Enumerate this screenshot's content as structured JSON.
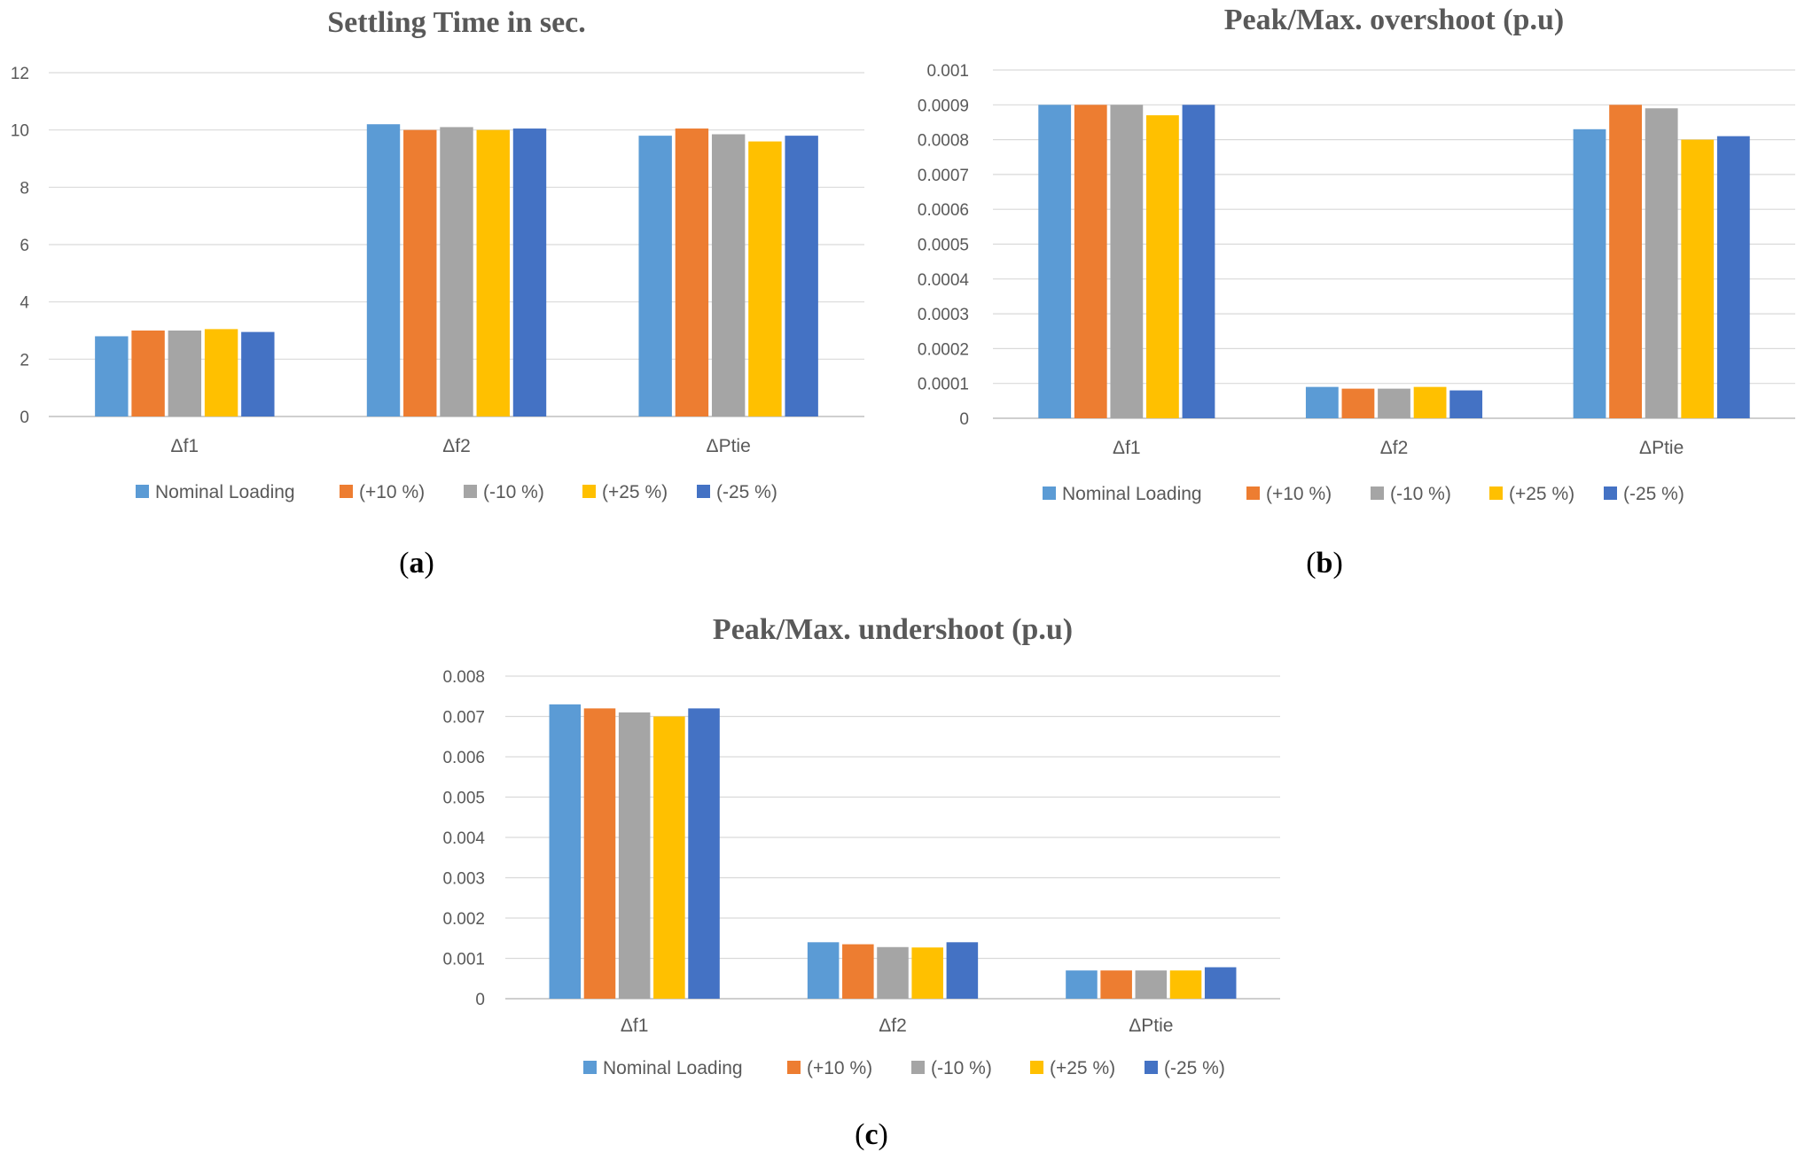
{
  "colors": {
    "series": [
      "#5B9BD5",
      "#ED7D31",
      "#A5A5A5",
      "#FFC000",
      "#4472C4"
    ],
    "grid": "#d9d9d9",
    "axis": "#bfbfbf",
    "text": "#595959"
  },
  "captions": [
    {
      "open": "(",
      "letter": "a",
      "close": ")"
    },
    {
      "open": "(",
      "letter": "b",
      "close": ")"
    },
    {
      "open": "(",
      "letter": "c",
      "close": ")"
    }
  ],
  "chart_data": [
    {
      "type": "bar",
      "title": "Settling Time in sec.",
      "categories": [
        "Δf1",
        "Δf2",
        "ΔPtie"
      ],
      "ylim": [
        0,
        12
      ],
      "yticks": [
        "0",
        "2",
        "4",
        "6",
        "8",
        "10",
        "12"
      ],
      "ytick_values": [
        0,
        2,
        4,
        6,
        8,
        10,
        12
      ],
      "grid": true,
      "legend": "bottom",
      "series": [
        {
          "name": "Nominal Loading",
          "values": [
            2.8,
            10.2,
            9.8
          ]
        },
        {
          "name": "(+10 %)",
          "values": [
            3.0,
            10.0,
            10.05
          ]
        },
        {
          "name": "(-10 %)",
          "values": [
            3.0,
            10.1,
            9.85
          ]
        },
        {
          "name": "(+25 %)",
          "values": [
            3.05,
            10.0,
            9.6
          ]
        },
        {
          "name": "(-25 %)",
          "values": [
            2.95,
            10.05,
            9.8
          ]
        }
      ]
    },
    {
      "type": "bar",
      "title": "Peak/Max. overshoot (p.u)",
      "categories": [
        "Δf1",
        "Δf2",
        "ΔPtie"
      ],
      "ylim": [
        0,
        0.001
      ],
      "yticks": [
        "0",
        "0.0001",
        "0.0002",
        "0.0003",
        "0.0004",
        "0.0005",
        "0.0006",
        "0.0007",
        "0.0008",
        "0.0009",
        "0.001"
      ],
      "ytick_values": [
        0,
        0.0001,
        0.0002,
        0.0003,
        0.0004,
        0.0005,
        0.0006,
        0.0007,
        0.0008,
        0.0009,
        0.001
      ],
      "grid": true,
      "legend": "bottom",
      "series": [
        {
          "name": "Nominal Loading",
          "values": [
            0.0009,
            9e-05,
            0.00083
          ]
        },
        {
          "name": "(+10 %)",
          "values": [
            0.0009,
            8.5e-05,
            0.0009
          ]
        },
        {
          "name": "(-10 %)",
          "values": [
            0.0009,
            8.5e-05,
            0.00089
          ]
        },
        {
          "name": "(+25 %)",
          "values": [
            0.00087,
            9e-05,
            0.0008
          ]
        },
        {
          "name": "(-25 %)",
          "values": [
            0.0009,
            8e-05,
            0.00081
          ]
        }
      ]
    },
    {
      "type": "bar",
      "title": "Peak/Max. undershoot (p.u)",
      "categories": [
        "Δf1",
        "Δf2",
        "ΔPtie"
      ],
      "ylim": [
        0,
        0.008
      ],
      "yticks": [
        "0",
        "0.001",
        "0.002",
        "0.003",
        "0.004",
        "0.005",
        "0.006",
        "0.007",
        "0.008"
      ],
      "ytick_values": [
        0,
        0.001,
        0.002,
        0.003,
        0.004,
        0.005,
        0.006,
        0.007,
        0.008
      ],
      "grid": true,
      "legend": "bottom",
      "series": [
        {
          "name": "Nominal Loading",
          "values": [
            0.0073,
            0.0014,
            0.0007
          ]
        },
        {
          "name": "(+10 %)",
          "values": [
            0.0072,
            0.00135,
            0.0007
          ]
        },
        {
          "name": "(-10 %)",
          "values": [
            0.0071,
            0.00128,
            0.0007
          ]
        },
        {
          "name": "(+25 %)",
          "values": [
            0.007,
            0.00127,
            0.0007
          ]
        },
        {
          "name": "(-25 %)",
          "values": [
            0.0072,
            0.0014,
            0.00078
          ]
        }
      ]
    }
  ]
}
